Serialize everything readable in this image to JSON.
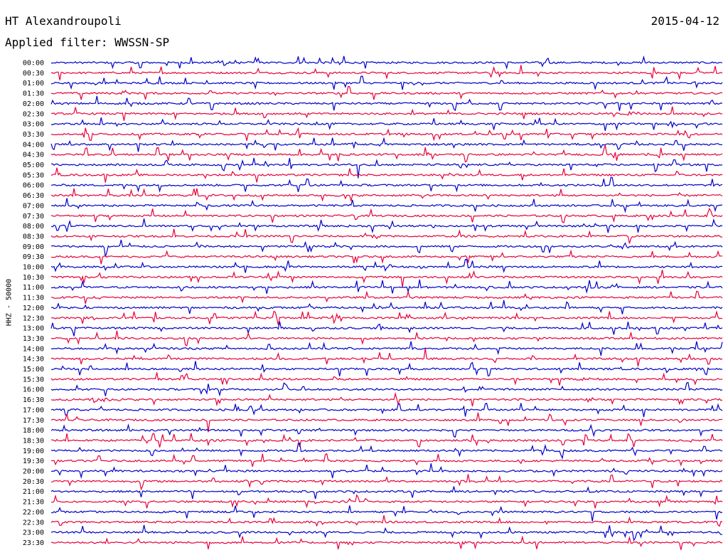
{
  "header": {
    "station": "HT Alexandroupoli",
    "date": "2015-04-12",
    "filter": "Applied filter: WWSSN-SP"
  },
  "chart_data": {
    "type": "line",
    "subtype": "helicorder",
    "ylabel": "HHZ - 50000",
    "row_labels": [
      "00:00",
      "00:30",
      "01:00",
      "01:30",
      "02:00",
      "02:30",
      "03:00",
      "03:30",
      "04:00",
      "04:30",
      "05:00",
      "05:30",
      "06:00",
      "06:30",
      "07:00",
      "07:30",
      "08:00",
      "08:30",
      "09:00",
      "09:30",
      "10:00",
      "10:30",
      "11:00",
      "11:30",
      "12:00",
      "12:30",
      "13:00",
      "13:30",
      "14:00",
      "14:30",
      "15:00",
      "15:30",
      "16:00",
      "16:30",
      "17:00",
      "17:30",
      "18:00",
      "18:30",
      "19:00",
      "19:30",
      "20:00",
      "20:30",
      "21:00",
      "21:30",
      "22:00",
      "22:30",
      "23:00",
      "23:30"
    ],
    "trace_colors": [
      "#0000cc",
      "#e8003a"
    ],
    "events": [
      {
        "row": 0,
        "pos": 0.25,
        "width": 0.07,
        "amp": 0.45
      },
      {
        "row": 5,
        "pos": 0.86,
        "width": 0.04,
        "amp": 0.35
      },
      {
        "row": 6,
        "pos": 0.92,
        "width": 0.035,
        "amp": 0.45
      },
      {
        "row": 8,
        "pos": 0.45,
        "width": 0.01,
        "amp": 0.6
      },
      {
        "row": 16,
        "pos": 0.57,
        "width": 0.015,
        "amp": 0.4
      },
      {
        "row": 17,
        "pos": 0.48,
        "width": 0.03,
        "amp": 0.3
      },
      {
        "row": 25,
        "pos": 0.42,
        "width": 0.045,
        "amp": 0.45
      },
      {
        "row": 25,
        "pos": 0.61,
        "width": 0.018,
        "amp": 0.3
      },
      {
        "row": 26,
        "pos": 0.49,
        "width": 0.01,
        "amp": 0.5
      },
      {
        "row": 31,
        "pos": 0.79,
        "width": 0.025,
        "amp": 0.4
      },
      {
        "row": 32,
        "pos": 0.35,
        "width": 0.008,
        "amp": 0.75
      },
      {
        "row": 32,
        "pos": 0.64,
        "width": 0.008,
        "amp": 0.75
      },
      {
        "row": 33,
        "pos": 0.06,
        "width": 0.05,
        "amp": 0.55
      },
      {
        "row": 33,
        "pos": 0.8,
        "width": 0.03,
        "amp": 0.35
      }
    ]
  }
}
